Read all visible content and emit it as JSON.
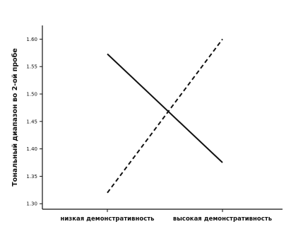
{
  "chart_data": {
    "type": "line",
    "title": "",
    "xlabel": "",
    "ylabel": "Тональный диапазон во 2-ой пробе",
    "categories": [
      "низкая демонстративность",
      "высокая демонстративность"
    ],
    "ylim": [
      1.29,
      1.625
    ],
    "yticks": [
      "1.30",
      "1.35",
      "1.40",
      "1.45",
      "1.50",
      "1.55",
      "1.60"
    ],
    "legend": "none",
    "grid": false,
    "series": [
      {
        "values": [
          1.573,
          1.375
        ],
        "line_style": "solid",
        "color": "#111111"
      },
      {
        "values": [
          1.32,
          1.6
        ],
        "line_style": "dashed",
        "color": "#111111"
      }
    ]
  }
}
